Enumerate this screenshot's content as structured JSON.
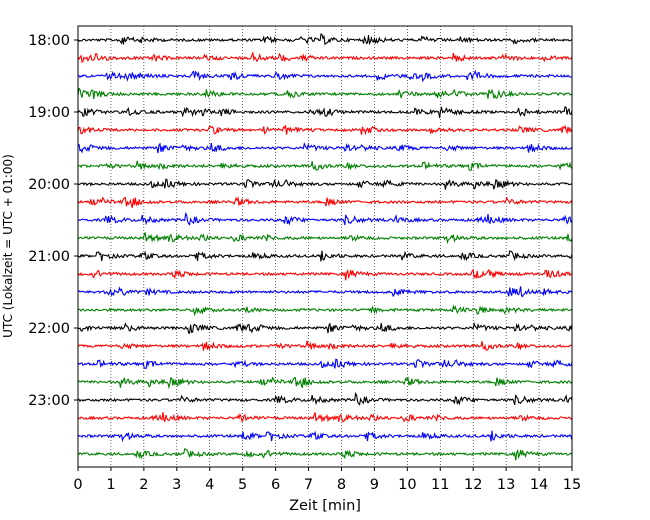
{
  "chart_data": {
    "type": "line",
    "title": "",
    "xlabel": "Zeit  [min]",
    "ylabel": "UTC (Lokalzeit = UTC + 01:00)",
    "xlim": [
      0,
      15
    ],
    "x_ticks": [
      "0",
      "1",
      "2",
      "3",
      "4",
      "5",
      "6",
      "7",
      "8",
      "9",
      "10",
      "11",
      "12",
      "13",
      "14",
      "15"
    ],
    "y_ticks": [
      "18:00",
      "19:00",
      "20:00",
      "21:00",
      "22:00",
      "23:00"
    ],
    "grid": "vertical dotted",
    "trace_interval_minutes": 15,
    "trace_count": 24,
    "trace_colors": [
      "#000000",
      "#ff0000",
      "#0000ff",
      "#008000"
    ],
    "series": [
      {
        "start": "18:00",
        "color": "#000000"
      },
      {
        "start": "18:15",
        "color": "#ff0000"
      },
      {
        "start": "18:30",
        "color": "#0000ff"
      },
      {
        "start": "18:45",
        "color": "#008000"
      },
      {
        "start": "19:00",
        "color": "#000000"
      },
      {
        "start": "19:15",
        "color": "#ff0000"
      },
      {
        "start": "19:30",
        "color": "#0000ff"
      },
      {
        "start": "19:45",
        "color": "#008000"
      },
      {
        "start": "20:00",
        "color": "#000000"
      },
      {
        "start": "20:15",
        "color": "#ff0000"
      },
      {
        "start": "20:30",
        "color": "#0000ff"
      },
      {
        "start": "20:45",
        "color": "#008000"
      },
      {
        "start": "21:00",
        "color": "#000000"
      },
      {
        "start": "21:15",
        "color": "#ff0000"
      },
      {
        "start": "21:30",
        "color": "#0000ff"
      },
      {
        "start": "21:45",
        "color": "#008000"
      },
      {
        "start": "22:00",
        "color": "#000000"
      },
      {
        "start": "22:15",
        "color": "#ff0000"
      },
      {
        "start": "22:30",
        "color": "#0000ff"
      },
      {
        "start": "22:45",
        "color": "#008000"
      },
      {
        "start": "23:00",
        "color": "#000000"
      },
      {
        "start": "23:15",
        "color": "#ff0000"
      },
      {
        "start": "23:30",
        "color": "#0000ff"
      },
      {
        "start": "23:45",
        "color": "#008000"
      }
    ]
  }
}
